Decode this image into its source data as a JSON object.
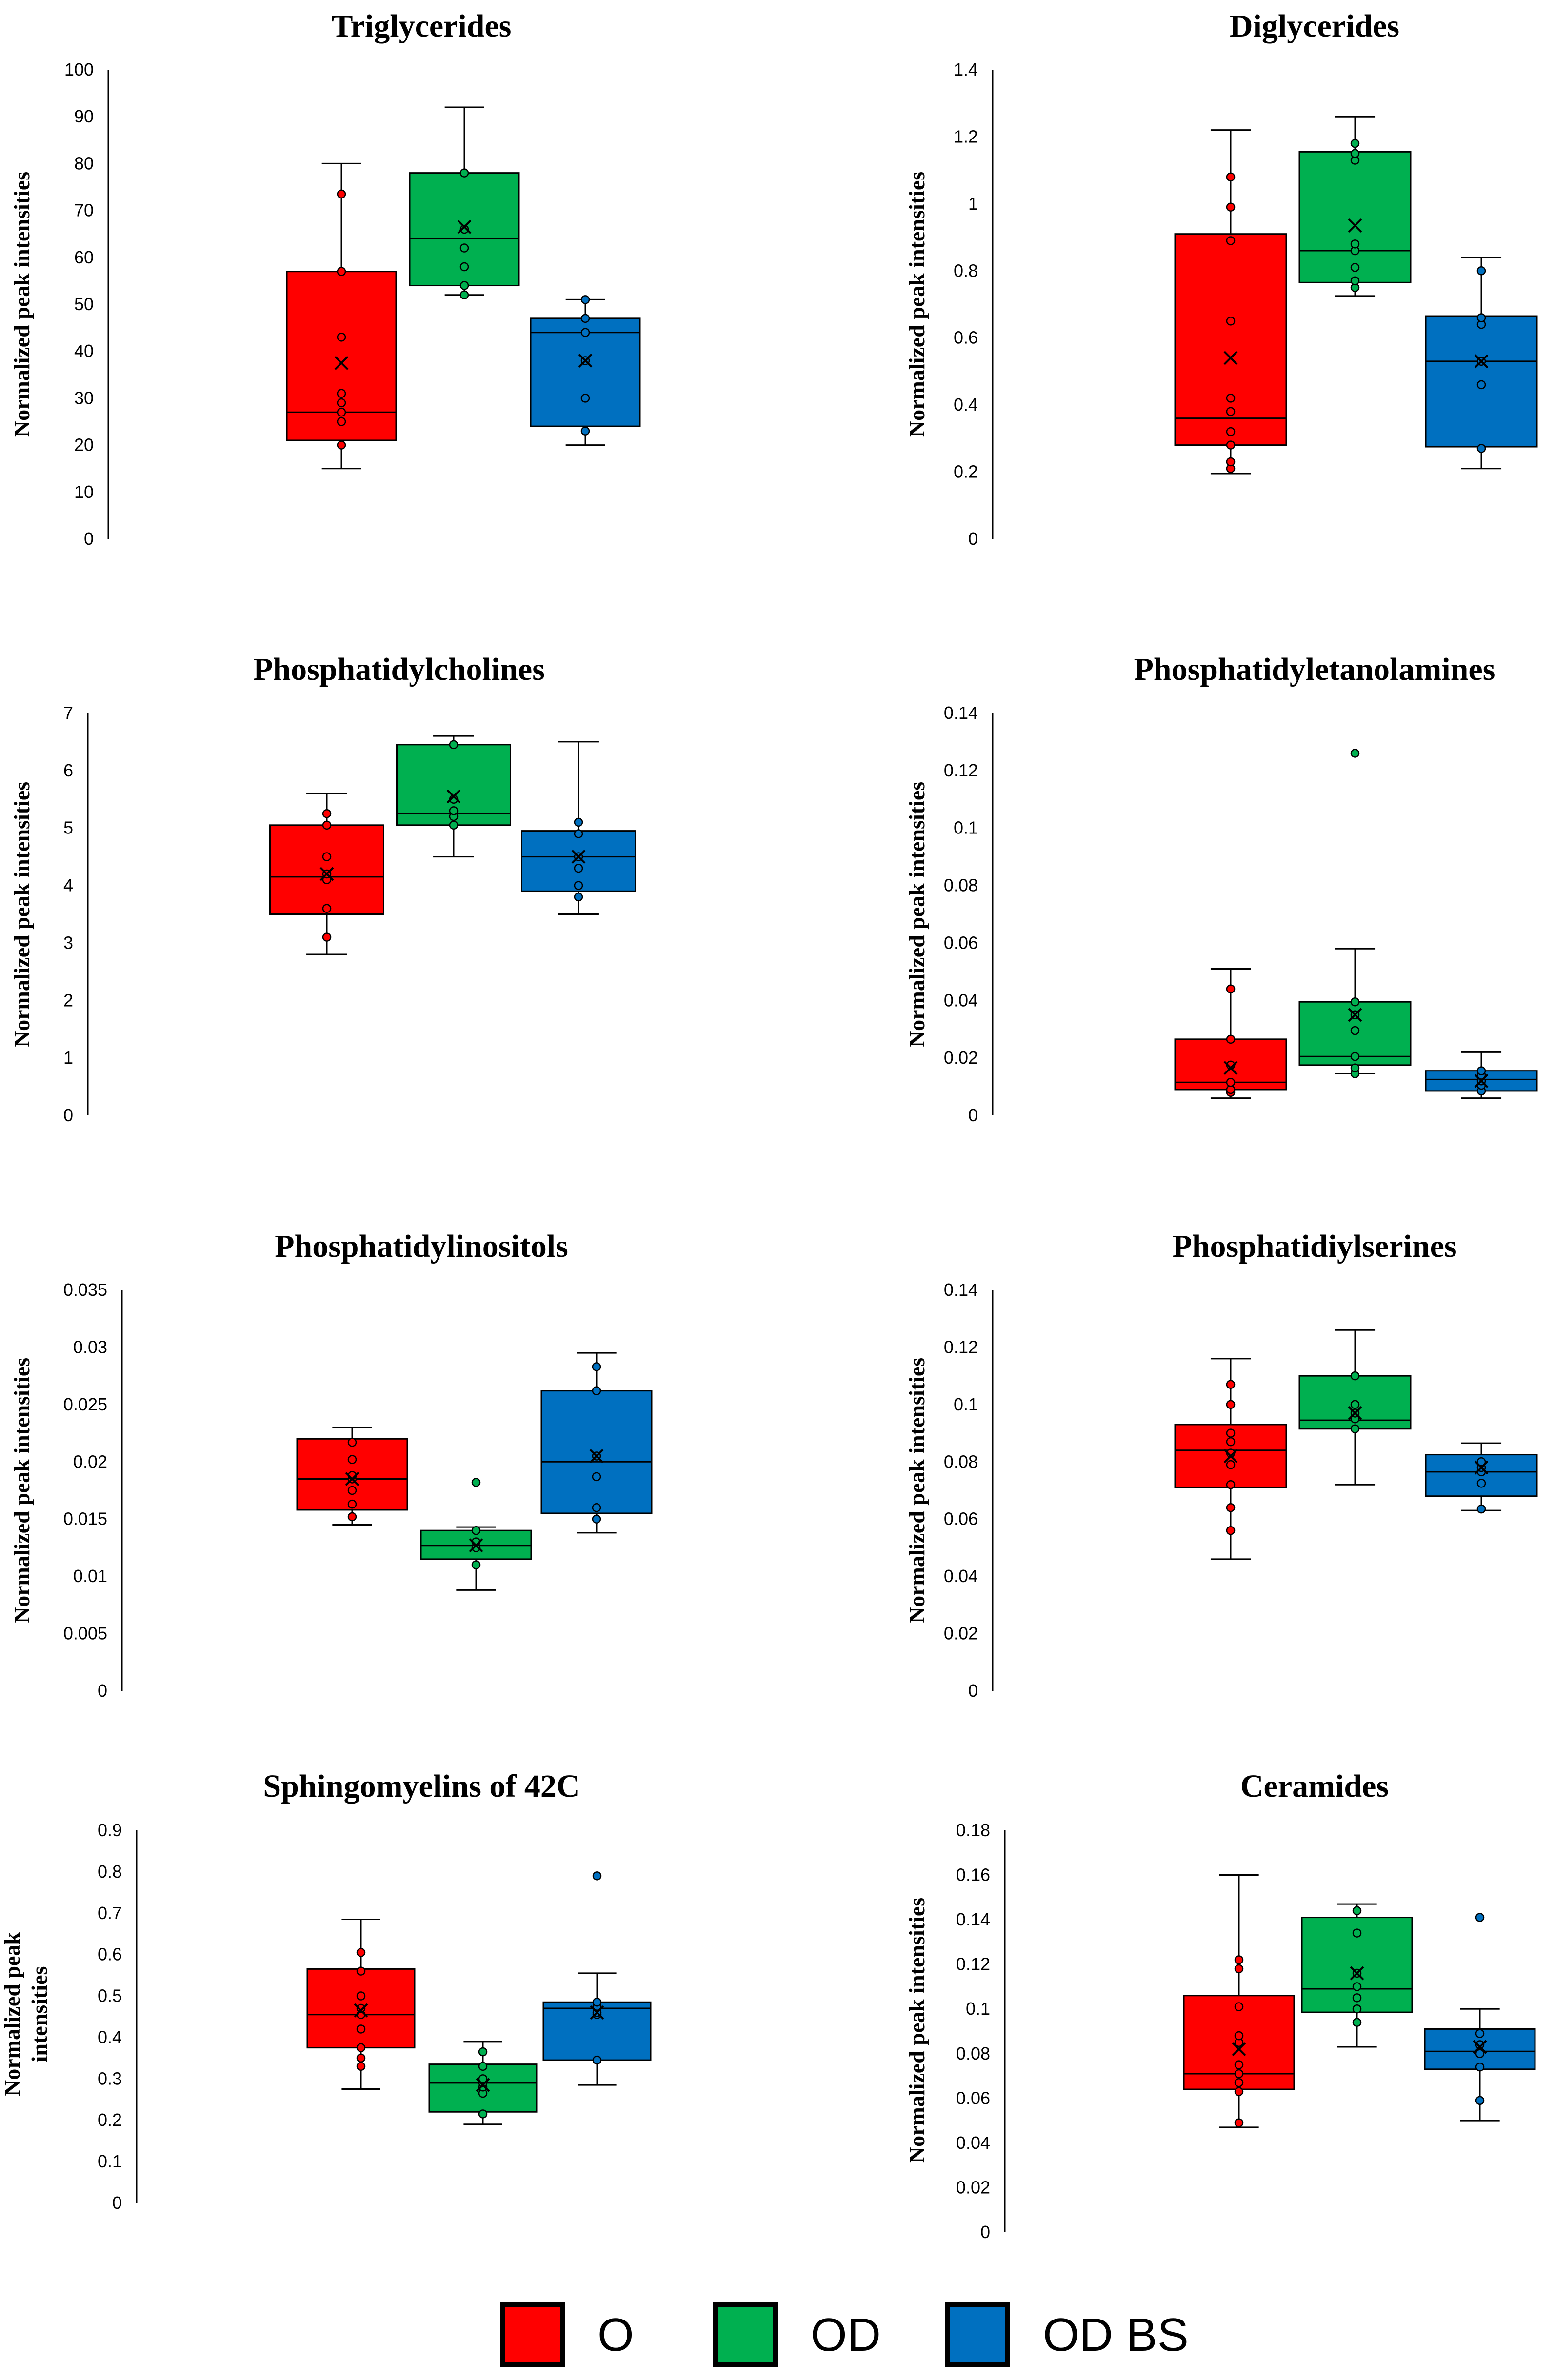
{
  "colors": {
    "O": "#ff0000",
    "OD": "#00b050",
    "OD BS": "#0070c0"
  },
  "legend": [
    {
      "label": "O",
      "color": "#ff0000"
    },
    {
      "label": "OD",
      "color": "#00b050"
    },
    {
      "label": "OD BS",
      "color": "#0070c0"
    }
  ],
  "chart_data": [
    {
      "type": "box",
      "title": "Triglycerides",
      "ylabel": "Normalized  peak intensities",
      "ylim": [
        0,
        100
      ],
      "yticks": [
        "0",
        "10",
        "20",
        "30",
        "40",
        "50",
        "60",
        "70",
        "80",
        "90",
        "100"
      ],
      "categories": [
        "O",
        "OD",
        "OD BS"
      ],
      "boxes": [
        {
          "group": "O",
          "min": 15,
          "q1": 21,
          "median": 27,
          "q3": 57,
          "max": 80,
          "mean": 37.5,
          "points": [
            20,
            25,
            27,
            29,
            31,
            43,
            57,
            73.5
          ]
        },
        {
          "group": "OD",
          "min": 52,
          "q1": 54,
          "median": 64,
          "q3": 78,
          "max": 92,
          "mean": 66.5,
          "points": [
            52,
            54,
            58,
            62,
            66,
            78
          ]
        },
        {
          "group": "OD BS",
          "min": 20,
          "q1": 24,
          "median": 44,
          "q3": 47,
          "max": 51,
          "mean": 38,
          "points": [
            23,
            30,
            38,
            44,
            47,
            51
          ]
        }
      ]
    },
    {
      "type": "box",
      "title": "Diglycerides",
      "ylabel": "Normalized peak intensities",
      "ylim": [
        0,
        1.4
      ],
      "yticks": [
        "0",
        "0.2",
        "0.4",
        "0.6",
        "0.8",
        "1",
        "1.2",
        "1.4"
      ],
      "categories": [
        "O",
        "OD",
        "OD BS"
      ],
      "boxes": [
        {
          "group": "O",
          "min": 0.195,
          "q1": 0.28,
          "median": 0.36,
          "q3": 0.91,
          "max": 1.22,
          "mean": 0.54,
          "points": [
            0.21,
            0.23,
            0.28,
            0.32,
            0.38,
            0.42,
            0.65,
            0.89,
            0.99,
            1.08
          ]
        },
        {
          "group": "OD",
          "min": 0.725,
          "q1": 0.765,
          "median": 0.86,
          "q3": 1.155,
          "max": 1.26,
          "mean": 0.935,
          "points": [
            0.75,
            0.77,
            0.81,
            0.86,
            0.88,
            1.13,
            1.15,
            1.18
          ]
        },
        {
          "group": "OD BS",
          "min": 0.21,
          "q1": 0.275,
          "median": 0.53,
          "q3": 0.665,
          "max": 0.84,
          "mean": 0.53,
          "points": [
            0.27,
            0.46,
            0.53,
            0.64,
            0.66,
            0.8
          ]
        }
      ]
    },
    {
      "type": "box",
      "title": "Phosphatidylcholines",
      "ylabel": "Normalized  peak intensities",
      "ylim": [
        0,
        7
      ],
      "yticks": [
        "0",
        "1",
        "2",
        "3",
        "4",
        "5",
        "6",
        "7"
      ],
      "categories": [
        "O",
        "OD",
        "OD BS"
      ],
      "boxes": [
        {
          "group": "O",
          "min": 2.8,
          "q1": 3.5,
          "median": 4.15,
          "q3": 5.05,
          "max": 5.6,
          "mean": 4.2,
          "points": [
            3.1,
            3.6,
            4.1,
            4.2,
            4.5,
            5.05,
            5.25
          ]
        },
        {
          "group": "OD",
          "min": 4.5,
          "q1": 5.05,
          "median": 5.25,
          "q3": 6.45,
          "max": 6.6,
          "mean": 5.55,
          "points": [
            5.05,
            5.2,
            5.3,
            5.5,
            6.45
          ]
        },
        {
          "group": "OD BS",
          "min": 3.5,
          "q1": 3.9,
          "median": 4.5,
          "q3": 4.95,
          "max": 6.5,
          "mean": 4.5,
          "points": [
            3.8,
            4.0,
            4.3,
            4.5,
            4.9,
            5.1
          ]
        }
      ]
    },
    {
      "type": "box",
      "title": "Phosphatidyletanolamines",
      "ylabel": "Normalized  peak intensities",
      "ylim": [
        0,
        0.14
      ],
      "yticks": [
        "0",
        "0.02",
        "0.04",
        "0.06",
        "0.08",
        "0.1",
        "0.12",
        "0.14"
      ],
      "categories": [
        "O",
        "OD",
        "OD BS"
      ],
      "boxes": [
        {
          "group": "O",
          "min": 0.006,
          "q1": 0.009,
          "median": 0.0115,
          "q3": 0.0265,
          "max": 0.051,
          "mean": 0.0165,
          "points": [
            0.008,
            0.009,
            0.0115,
            0.0175,
            0.0265,
            0.044
          ]
        },
        {
          "group": "OD",
          "min": 0.0145,
          "q1": 0.0175,
          "median": 0.0205,
          "q3": 0.0395,
          "max": 0.058,
          "mean": 0.035,
          "points": [
            0.0145,
            0.0165,
            0.0205,
            0.0295,
            0.035,
            0.0395,
            0.126
          ]
        },
        {
          "group": "OD BS",
          "min": 0.006,
          "q1": 0.0085,
          "median": 0.0125,
          "q3": 0.0155,
          "max": 0.022,
          "mean": 0.012,
          "points": [
            0.0085,
            0.0105,
            0.012,
            0.014,
            0.0155
          ]
        }
      ]
    },
    {
      "type": "box",
      "title": "Phosphatidylinositols",
      "ylabel": "Normalized  peak intensities",
      "ylim": [
        0,
        0.035
      ],
      "yticks": [
        "0",
        "0.005",
        "0.01",
        "0.015",
        "0.02",
        "0.025",
        "0.03",
        "0.035"
      ],
      "categories": [
        "O",
        "OD",
        "OD BS"
      ],
      "boxes": [
        {
          "group": "O",
          "min": 0.0145,
          "q1": 0.0158,
          "median": 0.0185,
          "q3": 0.022,
          "max": 0.023,
          "mean": 0.0185,
          "points": [
            0.0152,
            0.0163,
            0.0175,
            0.0185,
            0.0188,
            0.0202,
            0.0217
          ]
        },
        {
          "group": "OD",
          "min": 0.0088,
          "q1": 0.0115,
          "median": 0.0127,
          "q3": 0.014,
          "max": 0.0143,
          "mean": 0.0127,
          "points": [
            0.011,
            0.0125,
            0.013,
            0.014,
            0.0182
          ]
        },
        {
          "group": "OD BS",
          "min": 0.0138,
          "q1": 0.0155,
          "median": 0.02,
          "q3": 0.0262,
          "max": 0.0295,
          "mean": 0.0205,
          "points": [
            0.015,
            0.016,
            0.0187,
            0.0205,
            0.0262,
            0.0283
          ]
        }
      ]
    },
    {
      "type": "box",
      "title": "Phosphatidiylserines",
      "ylabel": "Normalized  peak intensities",
      "ylim": [
        0,
        0.14
      ],
      "yticks": [
        "0",
        "0.02",
        "0.04",
        "0.06",
        "0.08",
        "0.1",
        "0.12",
        "0.14"
      ],
      "categories": [
        "O",
        "OD",
        "OD BS"
      ],
      "boxes": [
        {
          "group": "O",
          "min": 0.046,
          "q1": 0.071,
          "median": 0.084,
          "q3": 0.093,
          "max": 0.116,
          "mean": 0.082,
          "points": [
            0.056,
            0.064,
            0.072,
            0.079,
            0.083,
            0.087,
            0.09,
            0.1,
            0.107
          ]
        },
        {
          "group": "OD",
          "min": 0.072,
          "q1": 0.0915,
          "median": 0.0945,
          "q3": 0.11,
          "max": 0.126,
          "mean": 0.097,
          "points": [
            0.0915,
            0.095,
            0.097,
            0.1,
            0.11
          ]
        },
        {
          "group": "OD BS",
          "min": 0.063,
          "q1": 0.068,
          "median": 0.0765,
          "q3": 0.0825,
          "max": 0.0865,
          "mean": 0.078,
          "points": [
            0.0635,
            0.0725,
            0.0765,
            0.078,
            0.08
          ]
        }
      ]
    },
    {
      "type": "box",
      "title": "Sphingomyelins  of 42C",
      "ylabel": [
        "Normalized  peak",
        "intensities"
      ],
      "ylim": [
        0,
        0.9
      ],
      "yticks": [
        "0",
        "0.1",
        "0.2",
        "0.3",
        "0.4",
        "0.5",
        "0.6",
        "0.7",
        "0.8",
        "0.9"
      ],
      "categories": [
        "O",
        "OD",
        "OD BS"
      ],
      "boxes": [
        {
          "group": "O",
          "min": 0.275,
          "q1": 0.375,
          "median": 0.455,
          "q3": 0.565,
          "max": 0.685,
          "mean": 0.465,
          "points": [
            0.33,
            0.35,
            0.375,
            0.42,
            0.455,
            0.47,
            0.5,
            0.56,
            0.605
          ]
        },
        {
          "group": "OD",
          "min": 0.19,
          "q1": 0.22,
          "median": 0.29,
          "q3": 0.335,
          "max": 0.39,
          "mean": 0.285,
          "points": [
            0.215,
            0.265,
            0.28,
            0.29,
            0.3,
            0.33,
            0.365
          ]
        },
        {
          "group": "OD BS",
          "min": 0.285,
          "q1": 0.345,
          "median": 0.47,
          "q3": 0.485,
          "max": 0.555,
          "mean": 0.46,
          "points": [
            0.345,
            0.455,
            0.46,
            0.475,
            0.485,
            0.79
          ]
        }
      ]
    },
    {
      "type": "box",
      "title": "Ceramides",
      "ylabel": "Normalized  peak intensities",
      "ylim": [
        0,
        0.18
      ],
      "yticks": [
        "0",
        "0.02",
        "0.04",
        "0.06",
        "0.08",
        "0.1",
        "0.12",
        "0.14",
        "0.16",
        "0.18"
      ],
      "categories": [
        "O",
        "OD",
        "OD BS"
      ],
      "boxes": [
        {
          "group": "O",
          "min": 0.047,
          "q1": 0.064,
          "median": 0.071,
          "q3": 0.106,
          "max": 0.16,
          "mean": 0.082,
          "points": [
            0.049,
            0.063,
            0.067,
            0.071,
            0.075,
            0.085,
            0.088,
            0.101,
            0.118,
            0.122
          ]
        },
        {
          "group": "OD",
          "min": 0.083,
          "q1": 0.0985,
          "median": 0.109,
          "q3": 0.141,
          "max": 0.147,
          "mean": 0.116,
          "points": [
            0.094,
            0.1,
            0.105,
            0.11,
            0.116,
            0.134,
            0.144
          ]
        },
        {
          "group": "OD BS",
          "min": 0.05,
          "q1": 0.073,
          "median": 0.081,
          "q3": 0.091,
          "max": 0.1,
          "mean": 0.083,
          "points": [
            0.059,
            0.074,
            0.08,
            0.084,
            0.089,
            0.141
          ]
        }
      ]
    }
  ]
}
